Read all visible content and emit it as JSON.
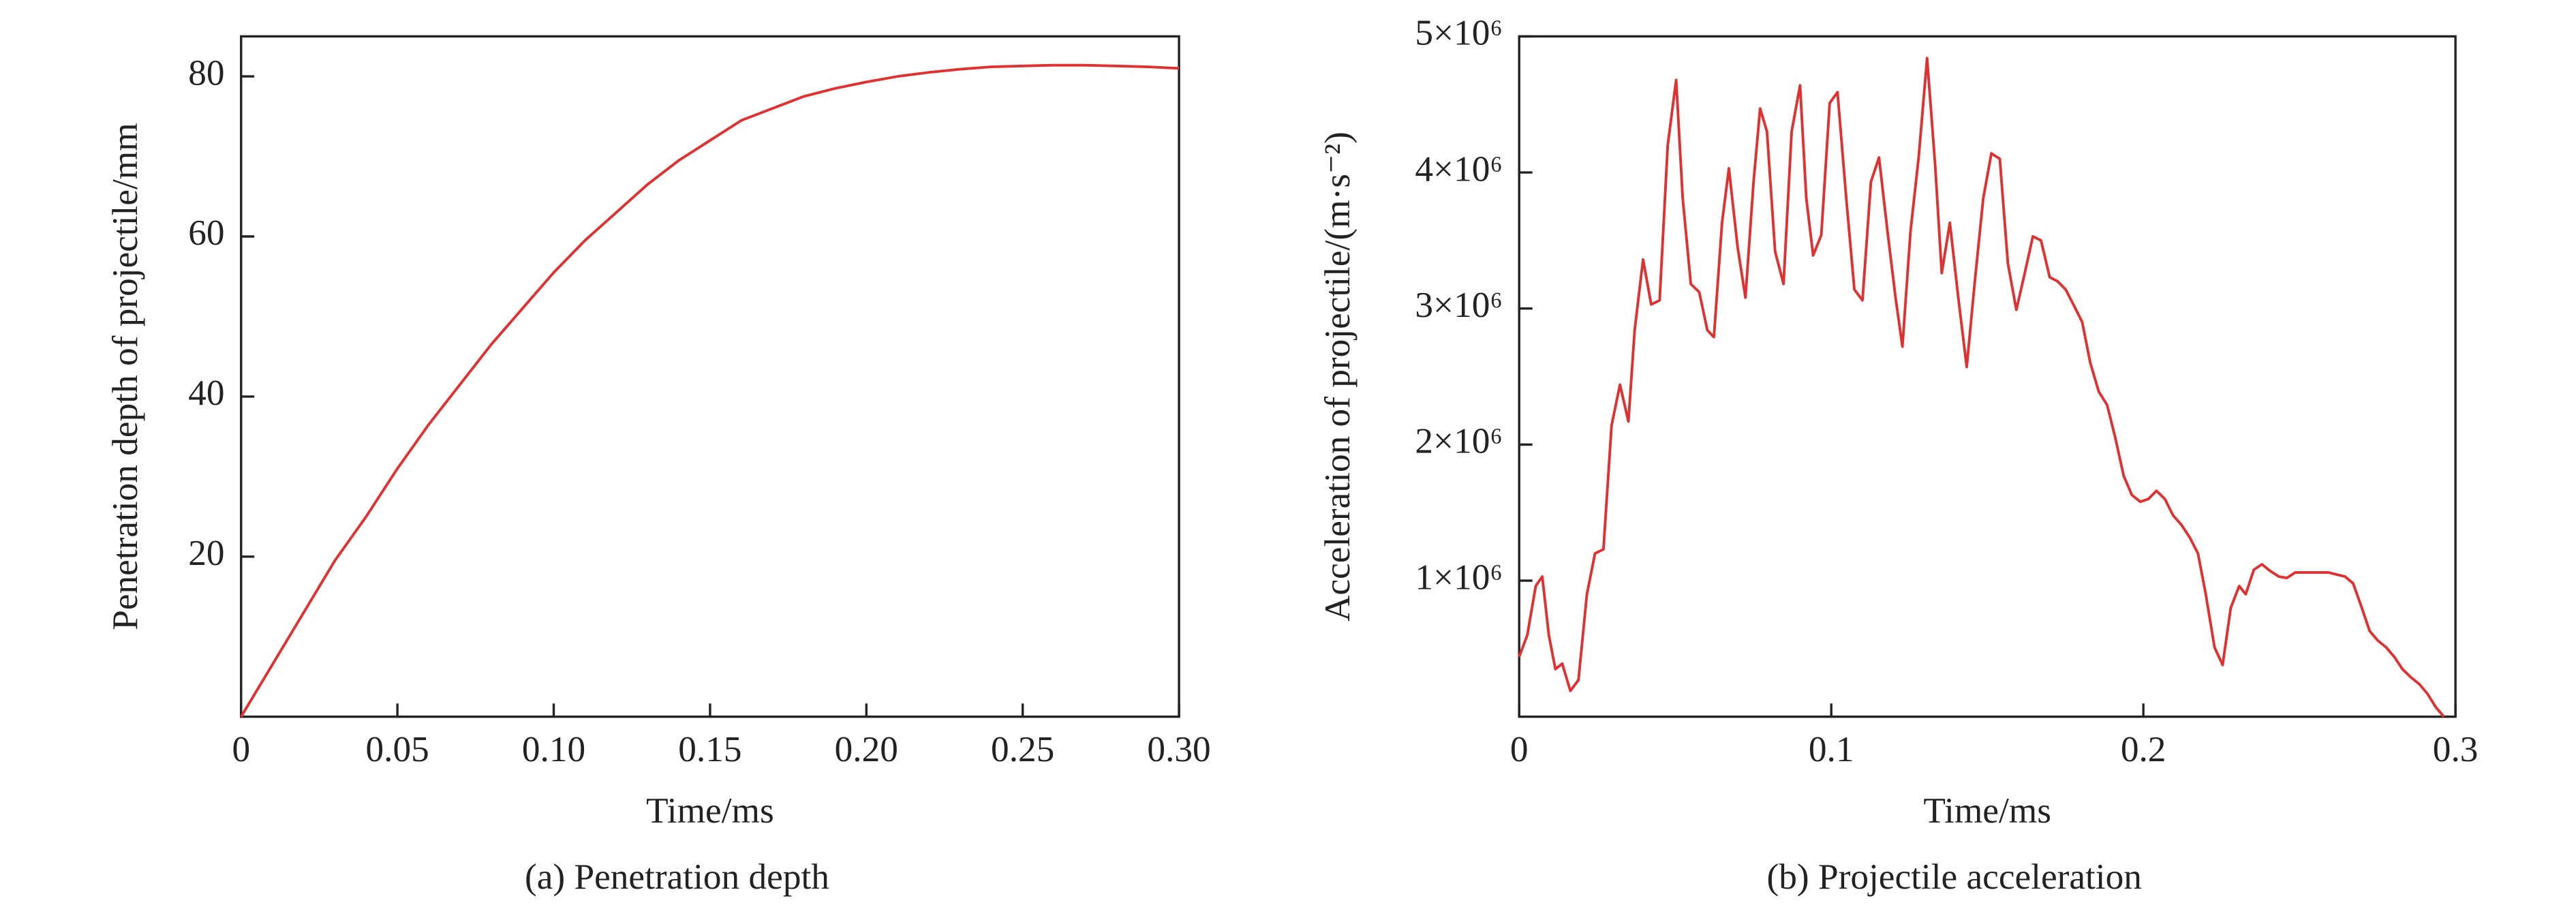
{
  "chart_data": [
    {
      "type": "line",
      "xlabel": "Time/ms",
      "ylabel": "Penetration depth of projectile/mm",
      "caption": "(a) Penetration depth",
      "xlim": [
        0,
        0.3
      ],
      "ylim": [
        0,
        85
      ],
      "xticks": [
        0,
        0.05,
        {
          "value": 0.1,
          "label": "0.10"
        },
        0.15,
        {
          "value": 0.2,
          "label": "0.20"
        },
        0.25,
        {
          "value": 0.3,
          "label": "0.30"
        }
      ],
      "yticks": [
        20,
        40,
        60,
        80
      ],
      "x": [
        0,
        0.01,
        0.02,
        0.03,
        0.04,
        0.05,
        0.06,
        0.07,
        0.08,
        0.09,
        0.1,
        0.11,
        0.12,
        0.13,
        0.14,
        0.15,
        0.16,
        0.17,
        0.18,
        0.19,
        0.2,
        0.21,
        0.22,
        0.23,
        0.24,
        0.25,
        0.26,
        0.27,
        0.28,
        0.29,
        0.3
      ],
      "series": [
        {
          "color": "#e03030",
          "values": [
            0,
            6.5,
            13,
            19.5,
            25,
            31,
            36.5,
            41.5,
            46.5,
            51,
            55.5,
            59.5,
            63,
            66.5,
            69.5,
            72,
            74.5,
            76,
            77.5,
            78.5,
            79.3,
            80,
            80.5,
            80.9,
            81.2,
            81.3,
            81.4,
            81.4,
            81.3,
            81.2,
            81
          ]
        }
      ]
    },
    {
      "type": "line",
      "xlabel": "Time/ms",
      "ylabel": "Acceleration of projectile/(m·s⁻²)",
      "caption": "(b) Projectile acceleration",
      "xlim": [
        0,
        0.3
      ],
      "ylim": [
        0,
        5000000
      ],
      "xticks": [
        0,
        0.1,
        0.2,
        0.3
      ],
      "yticks": [
        {
          "value": 1000000,
          "label": "1×10⁶"
        },
        {
          "value": 2000000,
          "label": "2×10⁶"
        },
        {
          "value": 3000000,
          "label": "3×10⁶"
        },
        {
          "value": 4000000,
          "label": "4×10⁶"
        },
        {
          "value": 5000000,
          "label": "5×10⁶"
        }
      ],
      "x": [
        0,
        0.0026,
        0.0053,
        0.0074,
        0.0095,
        0.0116,
        0.0138,
        0.0164,
        0.019,
        0.0217,
        0.0243,
        0.027,
        0.0296,
        0.0323,
        0.035,
        0.037,
        0.0397,
        0.0423,
        0.045,
        0.0476,
        0.0503,
        0.0524,
        0.055,
        0.0577,
        0.0603,
        0.0624,
        0.065,
        0.0672,
        0.07,
        0.0725,
        0.0751,
        0.0772,
        0.0794,
        0.082,
        0.0847,
        0.0873,
        0.09,
        0.092,
        0.0942,
        0.0968,
        0.0995,
        0.102,
        0.1048,
        0.1074,
        0.11,
        0.1127,
        0.1153,
        0.118,
        0.1206,
        0.1228,
        0.1254,
        0.128,
        0.1307,
        0.1333,
        0.1354,
        0.138,
        0.1407,
        0.1434,
        0.146,
        0.1487,
        0.1513,
        0.154,
        0.1566,
        0.1593,
        0.162,
        0.1646,
        0.1672,
        0.17,
        0.1725,
        0.1751,
        0.1778,
        0.1804,
        0.183,
        0.1857,
        0.1884,
        0.191,
        0.1937,
        0.1963,
        0.199,
        0.2016,
        0.2042,
        0.2069,
        0.2095,
        0.2122,
        0.2148,
        0.2175,
        0.22,
        0.2228,
        0.2254,
        0.228,
        0.2307,
        0.2328,
        0.2354,
        0.238,
        0.2407,
        0.2434,
        0.246,
        0.2487,
        0.254,
        0.2593,
        0.2646,
        0.2672,
        0.27,
        0.2725,
        0.2751,
        0.2778,
        0.2804,
        0.283,
        0.2857,
        0.2884,
        0.291,
        0.2937,
        0.2963
      ],
      "series": [
        {
          "color": "#e03030",
          "values": [
            440000,
            600000,
            960000,
            1030000,
            600000,
            350000,
            390000,
            190000,
            270000,
            900000,
            1200000,
            1230000,
            2140000,
            2440000,
            2170000,
            2840000,
            3360000,
            3030000,
            3060000,
            4200000,
            4680000,
            3810000,
            3180000,
            3120000,
            2840000,
            2790000,
            3630000,
            4030000,
            3450000,
            3080000,
            3930000,
            4470000,
            4300000,
            3420000,
            3180000,
            4300000,
            4640000,
            3810000,
            3390000,
            3540000,
            4510000,
            4590000,
            3810000,
            3140000,
            3060000,
            3930000,
            4110000,
            3570000,
            3080000,
            2720000,
            3570000,
            4110000,
            4840000,
            4050000,
            3260000,
            3630000,
            3080000,
            2570000,
            3200000,
            3810000,
            4140000,
            4100000,
            3330000,
            2990000,
            3260000,
            3530000,
            3500000,
            3230000,
            3200000,
            3140000,
            3020000,
            2900000,
            2600000,
            2390000,
            2290000,
            2050000,
            1770000,
            1630000,
            1580000,
            1600000,
            1660000,
            1600000,
            1480000,
            1410000,
            1320000,
            1200000,
            900000,
            510000,
            380000,
            800000,
            960000,
            900000,
            1080000,
            1120000,
            1070000,
            1030000,
            1020000,
            1060000,
            1060000,
            1060000,
            1030000,
            980000,
            800000,
            630000,
            560000,
            510000,
            440000,
            350000,
            290000,
            240000,
            170000,
            70000,
            0
          ]
        }
      ]
    }
  ]
}
